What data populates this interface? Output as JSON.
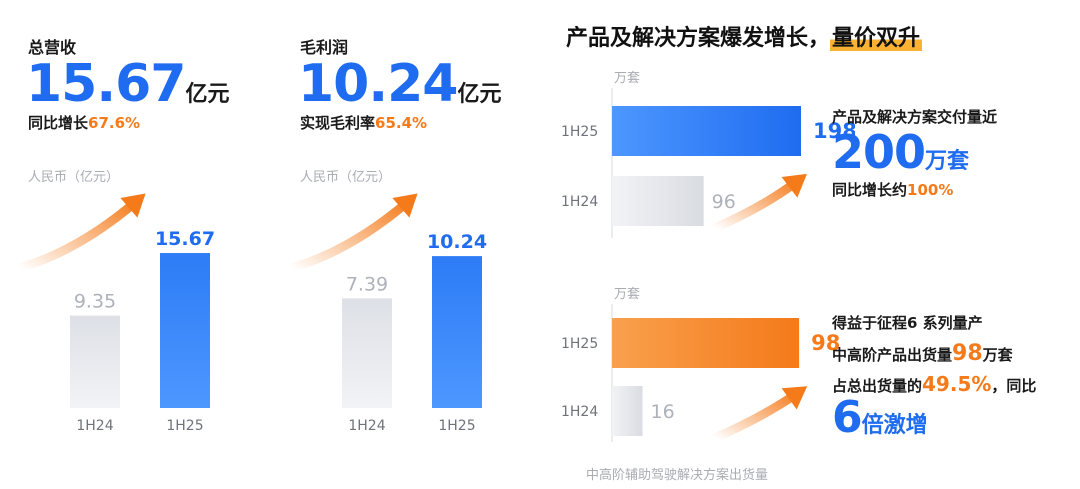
{
  "revenue": {
    "label": "总营收",
    "value": "15.67",
    "unit": "亿元",
    "growth_prefix": "同比增长",
    "growth_value": "67.6%",
    "axis_unit": "人民币（亿元）"
  },
  "gross_profit": {
    "label": "毛利润",
    "value": "10.24",
    "unit": "亿元",
    "margin_prefix": "实现毛利率",
    "margin_value": "65.4%",
    "axis_unit": "人民币（亿元）"
  },
  "right": {
    "title_main": "产品及解决方案爆发增长，",
    "title_highlight": "量价双升",
    "top_note_line1": "产品及解决方案交付量近",
    "top_big_value": "200",
    "top_big_unit": "万套",
    "top_growth_prefix": "同比增长约",
    "top_growth_value": "100%",
    "bottom_line1": "得益于征程6 系列量产",
    "bottom_line2_prefix": "中高阶产品出货量",
    "bottom_line2_value": "98",
    "bottom_line2_unit": "万套",
    "bottom_line3_prefix": "占总出货量的",
    "bottom_line3_value": "49.5%",
    "bottom_line3_suffix": "，同比",
    "bottom_big_value": "6",
    "bottom_big_suffix": "倍激增",
    "bottom_caption": "中高阶辅助驾驶解决方案出货量"
  },
  "colors": {
    "blue": "#1f6cf0",
    "orange": "#f47a1a",
    "gray_bar": "#d5d8de",
    "highlight": "#f9b234"
  },
  "chart_data": [
    {
      "type": "bar",
      "categories": [
        "1H24",
        "1H25"
      ],
      "values": [
        9.35,
        15.67
      ],
      "value_labels": [
        "9.35",
        "15.67"
      ],
      "ylabel": "人民币（亿元）",
      "ylim": [
        0,
        18
      ]
    },
    {
      "type": "bar",
      "categories": [
        "1H24",
        "1H25"
      ],
      "values": [
        7.39,
        10.24
      ],
      "value_labels": [
        "7.39",
        "10.24"
      ],
      "ylabel": "人民币（亿元）",
      "ylim": [
        0,
        12
      ]
    },
    {
      "type": "bar",
      "orientation": "horizontal",
      "categories": [
        "1H25",
        "1H24"
      ],
      "values": [
        198,
        96
      ],
      "value_labels": [
        "198",
        "96"
      ],
      "unit_label": "万套",
      "xlim": [
        0,
        220
      ]
    },
    {
      "type": "bar",
      "orientation": "horizontal",
      "categories": [
        "1H25",
        "1H24"
      ],
      "values": [
        98,
        16
      ],
      "value_labels": [
        "98",
        "16"
      ],
      "unit_label": "万套",
      "xlim": [
        0,
        110
      ]
    }
  ]
}
